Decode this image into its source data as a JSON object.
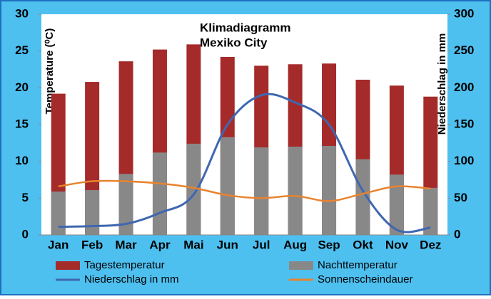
{
  "chart_data": {
    "type": "bar_line",
    "title": "Klimadiagramm",
    "subtitle": "Mexiko City",
    "y_label": "Temperature (⁰C)",
    "y2_label": "Niederschlag in mm",
    "categories": [
      "Jan",
      "Feb",
      "Mar",
      "Apr",
      "Mai",
      "Jun",
      "Jul",
      "Aug",
      "Sep",
      "Okt",
      "Nov",
      "Dez"
    ],
    "series": [
      {
        "name": "Tagestemperatur",
        "kind": "bar",
        "color": "#a52a2a",
        "values": [
          19.2,
          20.8,
          23.6,
          25.2,
          25.9,
          24.2,
          23.0,
          23.2,
          23.3,
          21.1,
          20.3,
          18.8
        ]
      },
      {
        "name": "Nachttemperatur",
        "kind": "bar",
        "color": "#888888",
        "values": [
          5.9,
          6.1,
          8.3,
          11.2,
          12.4,
          13.3,
          11.9,
          12.0,
          12.1,
          10.3,
          8.2,
          6.4
        ]
      },
      {
        "name": "Niederschlag in mm",
        "kind": "line",
        "axis": "y2",
        "color": "#3f67b0",
        "values": [
          11,
          12,
          15,
          30,
          55,
          150,
          190,
          180,
          150,
          60,
          7,
          10
        ]
      },
      {
        "name": "Sonnenscheindauer",
        "kind": "line",
        "color": "#e8832e",
        "values": [
          6.6,
          7.3,
          7.3,
          7.0,
          6.4,
          5.4,
          5.0,
          5.3,
          4.6,
          5.6,
          6.6,
          6.3
        ]
      }
    ],
    "ylim": [
      0,
      30
    ],
    "yticks": [
      0,
      5,
      10,
      15,
      20,
      25,
      30
    ],
    "y2lim": [
      0,
      300
    ],
    "y2ticks": [
      0,
      50,
      100,
      150,
      200,
      250,
      300
    ]
  }
}
